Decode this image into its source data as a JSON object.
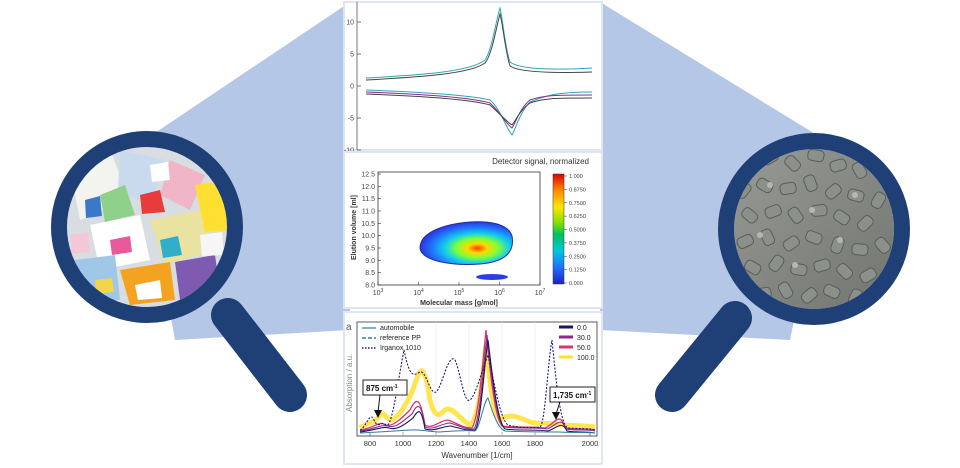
{
  "figure": {
    "description_type": "recycling-analysis-diagram",
    "colors": {
      "band": "#b4c7e7",
      "ring": "#1f3f77",
      "panel_border": "#dfe6f2"
    },
    "left_magnifier": {
      "icon": "magnifier-icon",
      "content": "shredded-plastic-waste"
    },
    "right_magnifier": {
      "icon": "magnifier-icon",
      "content": "recycled-pellets"
    }
  },
  "panel_top": {
    "y_ticks": [
      "10",
      "5",
      "0",
      "-5",
      "-10"
    ]
  },
  "panel_middle": {
    "colorbar_title": "Detector signal, normalized",
    "colorbar_ticks": [
      "1.000",
      "0.8750",
      "0.7500",
      "0.6250",
      "0.5000",
      "0.3750",
      "0.2500",
      "0.1250",
      "0.000"
    ],
    "xlabel": "Molecular mass [g/mol]",
    "ylabel": "Elution volume [ml]",
    "y_ticks": [
      "12.5",
      "12.0",
      "11.5",
      "11.0",
      "10.5",
      "10.0",
      "9.5",
      "9.0",
      "8.5",
      "8.0"
    ],
    "x_ticks": [
      {
        "base": "10",
        "exp": "3"
      },
      {
        "base": "10",
        "exp": "4"
      },
      {
        "base": "10",
        "exp": "5"
      },
      {
        "base": "10",
        "exp": "6"
      },
      {
        "base": "10",
        "exp": "7"
      }
    ]
  },
  "panel_bottom": {
    "panel_letter": "a",
    "ylabel": "Absorption / a.u.",
    "xlabel": "Wavenumber [1/cm]",
    "x_ticks": [
      "800",
      "1000",
      "1200",
      "1400",
      "1600",
      "1800",
      "2000"
    ],
    "legend_left": [
      {
        "label": "automobile",
        "style": "solid",
        "color": "#2d7fa0"
      },
      {
        "label": "reference PP",
        "style": "dashed",
        "color": "#2d7fa0"
      },
      {
        "label": "Irganox 1010",
        "style": "dotted",
        "color": "#1a1a7a"
      }
    ],
    "legend_right": [
      {
        "label": "0.0",
        "color": "#1b1464"
      },
      {
        "label": "30.0",
        "color": "#8e2a8e"
      },
      {
        "label": "50.0",
        "color": "#d9366a"
      },
      {
        "label": "100.0",
        "color": "#ffe030"
      }
    ],
    "annotation_left": {
      "value": "875 cm",
      "sup": "-1"
    },
    "annotation_right": {
      "value": "1,735 cm",
      "sup": "-1"
    }
  }
}
